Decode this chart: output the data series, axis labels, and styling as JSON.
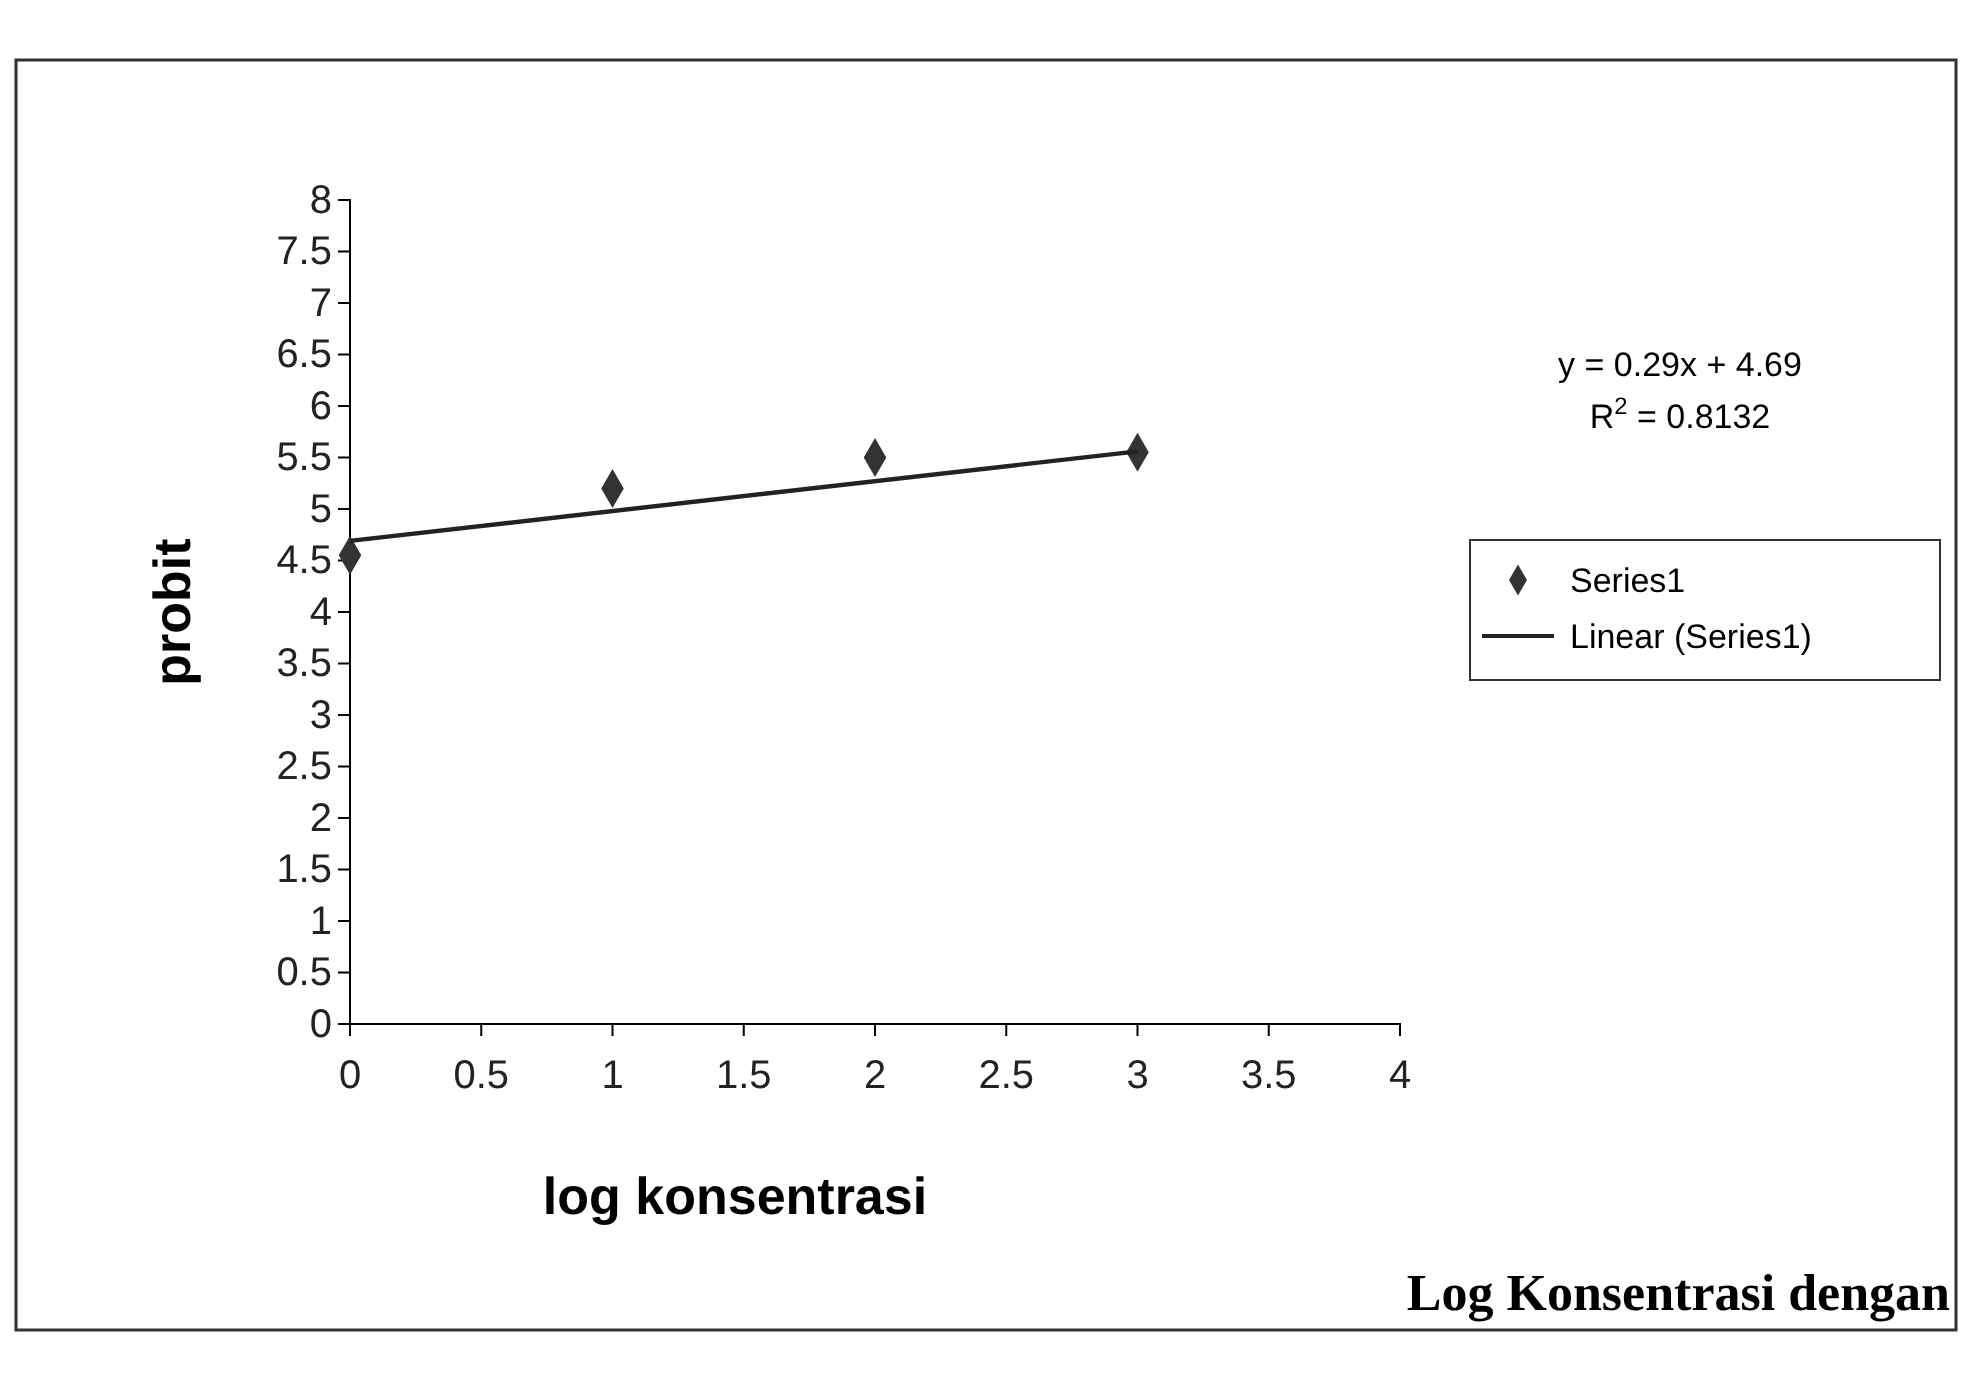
{
  "chart_data": {
    "type": "scatter",
    "xlabel": "log konsentrasi",
    "ylabel": "probit",
    "series": [
      {
        "name": "Series1",
        "color": "#333333",
        "marker": "diamond",
        "x": [
          0,
          1,
          2,
          3
        ],
        "values": [
          4.55,
          5.2,
          5.5,
          5.55
        ]
      },
      {
        "name": "Linear (Series1)",
        "type": "line",
        "color": "#222222",
        "marker": "none",
        "line_style": "solid",
        "x": [
          0,
          3
        ],
        "values": [
          4.69,
          5.56
        ]
      }
    ],
    "xlim": [
      0,
      4
    ],
    "xticks": [
      0,
      0.5,
      1,
      1.5,
      2,
      2.5,
      3,
      3.5,
      4
    ],
    "ylim": [
      0,
      8
    ],
    "yticks": [
      0,
      0.5,
      1,
      1.5,
      2,
      2.5,
      3,
      3.5,
      4,
      4.5,
      5,
      5.5,
      6,
      6.5,
      7,
      7.5,
      8
    ],
    "grid": false,
    "legend": "right",
    "annotations": [
      "y = 0.29x + 4.69",
      "R$^{2}$ = 0.8132",
      "Log Konsentrasi dengan"
    ]
  }
}
